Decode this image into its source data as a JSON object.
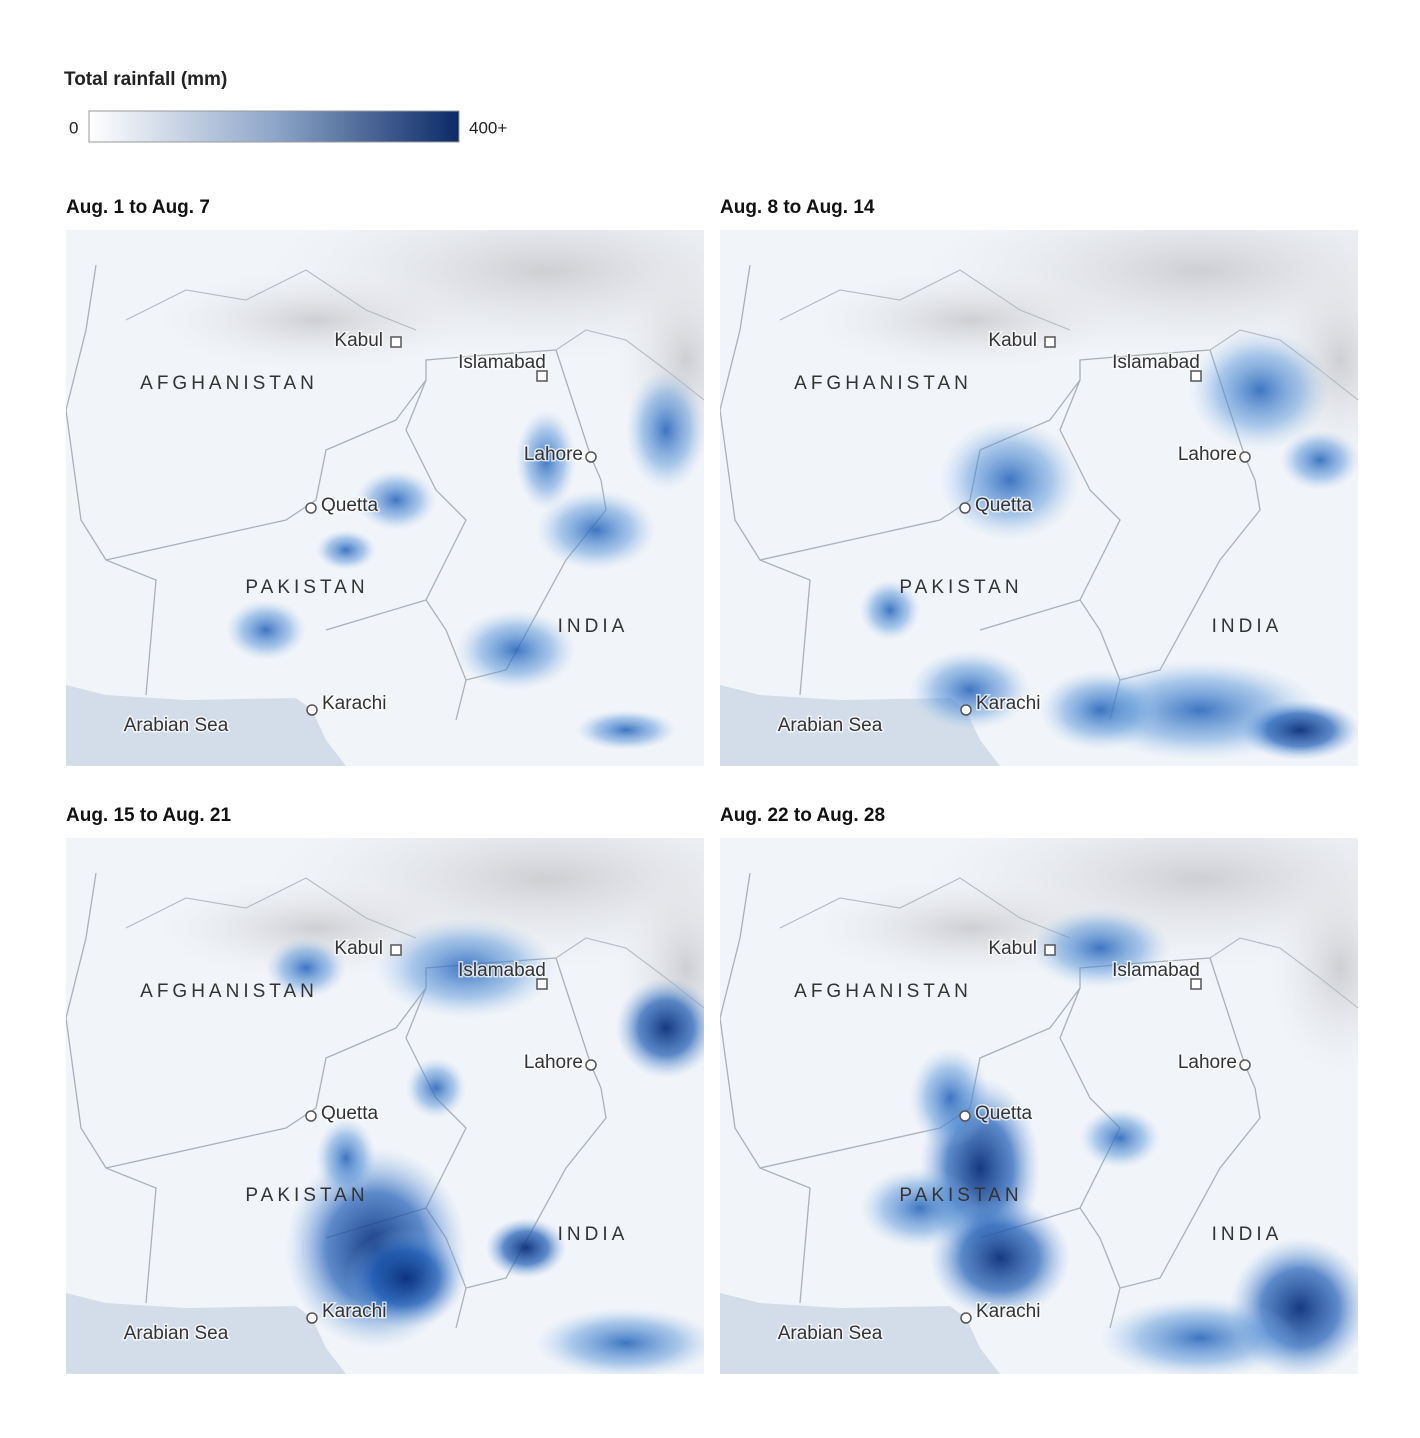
{
  "legend": {
    "title": "Total rainfall (mm)",
    "min": "0",
    "max": "400+"
  },
  "panels": [
    {
      "title": "Aug. 1 to Aug. 7",
      "labels": [
        "Kabul",
        "Islamabad",
        "AFGHANISTAN",
        "Lahore",
        "Quetta",
        "PAKISTAN",
        "INDIA",
        "Karachi",
        "Arabian Sea"
      ]
    },
    {
      "title": "Aug. 8 to Aug. 14",
      "labels": [
        "Kabul",
        "Islamabad",
        "AFGHANISTAN",
        "Lahore",
        "Quetta",
        "PAKISTAN",
        "INDIA",
        "Karachi",
        "Arabian Sea"
      ]
    },
    {
      "title": "Aug. 15 to Aug. 21",
      "labels": [
        "Kabul",
        "Islamabad",
        "AFGHANISTAN",
        "Lahore",
        "Quetta",
        "PAKISTAN",
        "INDIA",
        "Karachi",
        "Arabian Sea"
      ]
    },
    {
      "title": "Aug. 22 to Aug. 28",
      "labels": [
        "Kabul",
        "Islamabad",
        "AFGHANISTAN",
        "Lahore",
        "Quetta",
        "PAKISTAN",
        "INDIA",
        "Karachi",
        "Arabian Sea"
      ]
    }
  ]
}
